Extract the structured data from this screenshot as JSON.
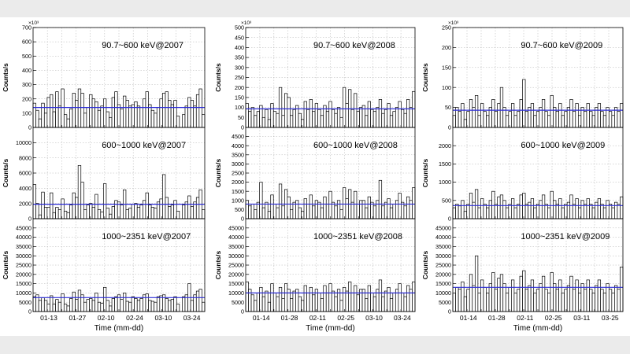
{
  "chart_data": [
    {
      "type": "bar",
      "column": 2007,
      "x_tick_labels": [
        "01-13",
        "01-27",
        "02-10",
        "02-24",
        "03-10",
        "03-24"
      ],
      "xlabel": "Time (mm-dd)",
      "panels": [
        {
          "label": "90.7~600 keV@2007",
          "ylabel": "Counts/s",
          "exponent_label": "×10³",
          "ylim": [
            0,
            700
          ],
          "yticks": [
            0,
            100,
            200,
            300,
            400,
            500,
            600,
            700
          ],
          "mean": 140,
          "values": [
            170,
            120,
            60,
            170,
            100,
            210,
            230,
            110,
            250,
            150,
            270,
            90,
            60,
            130,
            240,
            190,
            270,
            240,
            100,
            140,
            230,
            200,
            180,
            120,
            150,
            200,
            110,
            70,
            210,
            250,
            160,
            130,
            220,
            190,
            150,
            160,
            180,
            150,
            140,
            200,
            250,
            160,
            120,
            100,
            140,
            200,
            240,
            250,
            190,
            160,
            190,
            80,
            0,
            90,
            150,
            210,
            190,
            150,
            230,
            270,
            90
          ]
        },
        {
          "label": "600~1000 keV@2007",
          "ylabel": "Counts/s",
          "ylim": [
            0,
            12000
          ],
          "yticks": [
            0,
            2000,
            4000,
            6000,
            8000,
            10000
          ],
          "mean": 1900,
          "values": [
            4500,
            2000,
            500,
            3500,
            1500,
            1500,
            3400,
            800,
            1500,
            1200,
            2600,
            1000,
            800,
            1800,
            3400,
            2800,
            7000,
            4800,
            1200,
            1800,
            2000,
            1500,
            3200,
            1200,
            900,
            4600,
            1400,
            600,
            1600,
            2400,
            2200,
            1800,
            3800,
            1200,
            1400,
            1900,
            2000,
            1500,
            1800,
            2400,
            3400,
            1800,
            1500,
            1400,
            2200,
            2600,
            5800,
            2800,
            1600,
            1800,
            2400,
            1000,
            0,
            1800,
            2200,
            3000,
            1600,
            2200,
            2800,
            3800,
            1200
          ]
        },
        {
          "label": "1000~2351 keV@2007",
          "ylabel": "Counts/s",
          "ylim": [
            0,
            50000
          ],
          "yticks": [
            0,
            5000,
            10000,
            15000,
            20000,
            25000,
            30000,
            35000,
            40000,
            45000
          ],
          "mean": 7500,
          "values": [
            8000,
            9000,
            6000,
            7500,
            6000,
            4000,
            8500,
            4000,
            6500,
            5000,
            9500,
            4000,
            3000,
            7000,
            10500,
            6500,
            11500,
            9000,
            5000,
            6500,
            7000,
            6000,
            10000,
            5000,
            4500,
            13000,
            6000,
            3000,
            7000,
            8000,
            9000,
            6500,
            10000,
            5500,
            5000,
            8000,
            7000,
            6000,
            7000,
            9000,
            9500,
            6000,
            5500,
            5000,
            8000,
            8500,
            9000,
            7000,
            6000,
            6500,
            8000,
            4000,
            0,
            8000,
            9000,
            15000,
            6000,
            9000,
            11000,
            12000,
            5000
          ]
        }
      ]
    },
    {
      "type": "bar",
      "column": 2008,
      "x_tick_labels": [
        "01-14",
        "01-28",
        "02-11",
        "02-25",
        "03-10",
        "03-24"
      ],
      "xlabel": "Time (mm-dd)",
      "panels": [
        {
          "label": "90.7~600 keV@2008",
          "ylabel": "Counts/s",
          "exponent_label": "×10³",
          "ylim": [
            0,
            500
          ],
          "yticks": [
            0,
            50,
            100,
            150,
            200,
            250,
            300,
            350,
            400,
            450,
            500
          ],
          "mean": 93,
          "values": [
            120,
            80,
            100,
            60,
            80,
            110,
            50,
            90,
            40,
            120,
            80,
            70,
            200,
            60,
            170,
            150,
            60,
            90,
            110,
            70,
            40,
            130,
            90,
            140,
            80,
            120,
            90,
            60,
            110,
            80,
            130,
            90,
            70,
            100,
            50,
            200,
            120,
            190,
            90,
            170,
            80,
            100,
            110,
            60,
            130,
            90,
            80,
            100,
            140,
            70,
            90,
            120,
            60,
            80,
            100,
            130,
            90,
            70,
            140,
            100,
            180
          ]
        },
        {
          "label": "600~1000 keV@2008",
          "ylabel": "Counts/s",
          "ylim": [
            0,
            5000
          ],
          "yticks": [
            0,
            500,
            1000,
            1500,
            2000,
            2500,
            3000,
            3500,
            4000,
            4500
          ],
          "mean": 800,
          "values": [
            1000,
            700,
            800,
            500,
            900,
            2000,
            600,
            900,
            400,
            1300,
            800,
            600,
            1900,
            700,
            1600,
            1200,
            500,
            900,
            1000,
            600,
            400,
            1100,
            800,
            1300,
            700,
            1000,
            900,
            600,
            1200,
            800,
            1500,
            900,
            700,
            1000,
            500,
            1700,
            1100,
            1600,
            900,
            1500,
            800,
            1000,
            1000,
            600,
            1200,
            900,
            700,
            1000,
            2100,
            700,
            900,
            1100,
            600,
            800,
            1000,
            1400,
            900,
            700,
            1200,
            1000,
            1700
          ]
        },
        {
          "label": "1000~2351 keV@2008",
          "ylabel": "Counts/s",
          "ylim": [
            0,
            50000
          ],
          "yticks": [
            0,
            5000,
            10000,
            15000,
            20000,
            25000,
            30000,
            35000,
            40000,
            45000
          ],
          "mean": 10000,
          "values": [
            16000,
            12000,
            9000,
            6000,
            10000,
            13000,
            8000,
            11000,
            5000,
            15000,
            10000,
            8000,
            13000,
            7000,
            15000,
            12000,
            7000,
            11000,
            12000,
            8000,
            6000,
            14000,
            10000,
            13000,
            9000,
            12000,
            10000,
            7000,
            14000,
            10000,
            15000,
            11000,
            8000,
            12000,
            6000,
            13000,
            11000,
            16000,
            10000,
            14000,
            9000,
            12000,
            12000,
            7000,
            14000,
            10000,
            8000,
            12000,
            17000,
            8000,
            11000,
            13000,
            7000,
            10000,
            12000,
            15000,
            10000,
            8000,
            14000,
            12000,
            16000
          ]
        }
      ]
    },
    {
      "type": "bar",
      "column": 2009,
      "x_tick_labels": [
        "01-14",
        "01-28",
        "02-11",
        "02-25",
        "03-11",
        "03-25"
      ],
      "xlabel": "Time (mm-dd)",
      "panels": [
        {
          "label": "90.7~600 keV@2009",
          "ylabel": "Counts/s",
          "exponent_label": "×10³",
          "ylim": [
            0,
            250
          ],
          "yticks": [
            0,
            50,
            100,
            150,
            200,
            250
          ],
          "mean": 43,
          "values": [
            30,
            50,
            40,
            60,
            20,
            40,
            70,
            50,
            80,
            30,
            60,
            40,
            30,
            50,
            70,
            40,
            60,
            100,
            50,
            30,
            40,
            60,
            30,
            40,
            70,
            120,
            40,
            50,
            60,
            30,
            40,
            50,
            70,
            40,
            30,
            80,
            50,
            40,
            60,
            30,
            40,
            50,
            70,
            40,
            60,
            30,
            50,
            40,
            60,
            40,
            30,
            50,
            60,
            40,
            30,
            50,
            40,
            30,
            50,
            40,
            60
          ]
        },
        {
          "label": "600~1000 keV@2009",
          "ylabel": "Counts/s",
          "ylim": [
            0,
            2500
          ],
          "yticks": [
            0,
            500,
            1000,
            1500,
            2000
          ],
          "mean": 360,
          "values": [
            300,
            400,
            350,
            500,
            200,
            400,
            700,
            450,
            800,
            300,
            550,
            400,
            300,
            500,
            750,
            400,
            600,
            650,
            500,
            300,
            400,
            550,
            300,
            400,
            650,
            700,
            400,
            450,
            550,
            300,
            400,
            500,
            650,
            400,
            300,
            750,
            500,
            400,
            550,
            300,
            400,
            450,
            650,
            400,
            550,
            300,
            500,
            400,
            550,
            400,
            300,
            450,
            550,
            400,
            300,
            500,
            400,
            300,
            450,
            400,
            600
          ]
        },
        {
          "label": "1000~2351 keV@2009",
          "ylabel": "Counts/s",
          "ylim": [
            0,
            50000
          ],
          "yticks": [
            0,
            5000,
            10000,
            15000,
            20000,
            25000,
            30000,
            35000,
            40000,
            45000
          ],
          "mean": 13000,
          "values": [
            10000,
            13000,
            12000,
            16000,
            8000,
            12000,
            20000,
            14000,
            30000,
            10000,
            17000,
            13000,
            10000,
            15000,
            21000,
            12000,
            18000,
            20000,
            15000,
            10000,
            13000,
            17000,
            10000,
            12000,
            19000,
            22000,
            12000,
            14000,
            17000,
            10000,
            12000,
            15000,
            19000,
            12000,
            10000,
            21000,
            15000,
            12000,
            17000,
            10000,
            12000,
            14000,
            19000,
            12000,
            17000,
            10000,
            15000,
            12000,
            17000,
            12000,
            10000,
            14000,
            17000,
            12000,
            10000,
            15000,
            12000,
            10000,
            14000,
            12000,
            24000
          ]
        }
      ]
    }
  ]
}
